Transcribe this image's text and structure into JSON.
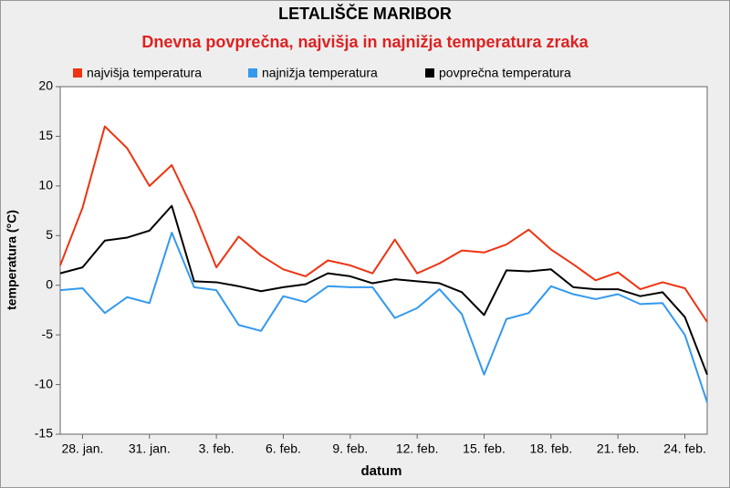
{
  "chart_data": {
    "type": "line",
    "title": "LETALIŠČE MARIBOR",
    "subtitle": "Dnevna povprečna, najvišja in najnižja  temperatura zraka",
    "x_label": "datum",
    "y_label": "temperatura (°C)",
    "categories": [
      null,
      "28. jan.",
      null,
      null,
      "31. jan.",
      null,
      null,
      "3. feb.",
      null,
      null,
      "6. feb.",
      null,
      null,
      "9. feb.",
      null,
      null,
      "12. feb.",
      null,
      null,
      "15. feb.",
      null,
      null,
      "18. feb.",
      null,
      null,
      "21. feb.",
      null,
      null,
      "24. feb.",
      null
    ],
    "series": [
      {
        "name": "najvišja temperatura",
        "color": "#ee3311",
        "values": [
          2.0,
          7.8,
          16.0,
          13.8,
          10.0,
          12.1,
          7.4,
          1.8,
          4.9,
          3.0,
          1.6,
          0.9,
          2.5,
          2.0,
          1.2,
          4.6,
          1.2,
          2.2,
          3.5,
          3.3,
          4.1,
          5.6,
          3.6,
          2.1,
          0.5,
          1.3,
          -0.4,
          0.3,
          -0.3,
          -3.7
        ]
      },
      {
        "name": "najnižja temperatura",
        "color": "#3399ee",
        "values": [
          -0.5,
          -0.3,
          -2.8,
          -1.2,
          -1.8,
          5.3,
          -0.2,
          -0.5,
          -4.0,
          -4.6,
          -1.1,
          -1.7,
          -0.1,
          -0.2,
          -0.2,
          -3.3,
          -2.3,
          -0.4,
          -2.9,
          -9.0,
          -3.4,
          -2.8,
          -0.1,
          -0.9,
          -1.4,
          -0.9,
          -1.9,
          -1.8,
          -5.0,
          -11.8
        ]
      },
      {
        "name": "povprečna temperatura",
        "color": "#000000",
        "values": [
          1.2,
          1.8,
          4.5,
          4.8,
          5.5,
          8.0,
          0.4,
          0.3,
          -0.1,
          -0.6,
          -0.2,
          0.1,
          1.2,
          0.9,
          0.2,
          0.6,
          0.4,
          0.2,
          -0.7,
          -3.0,
          1.5,
          1.4,
          1.6,
          -0.2,
          -0.4,
          -0.4,
          -1.1,
          -0.7,
          -3.2,
          -9.0
        ]
      }
    ],
    "ylim": [
      -15,
      20
    ],
    "yticks": [
      -15,
      -10,
      -5,
      0,
      5,
      10,
      15,
      20
    ],
    "grid": false
  }
}
